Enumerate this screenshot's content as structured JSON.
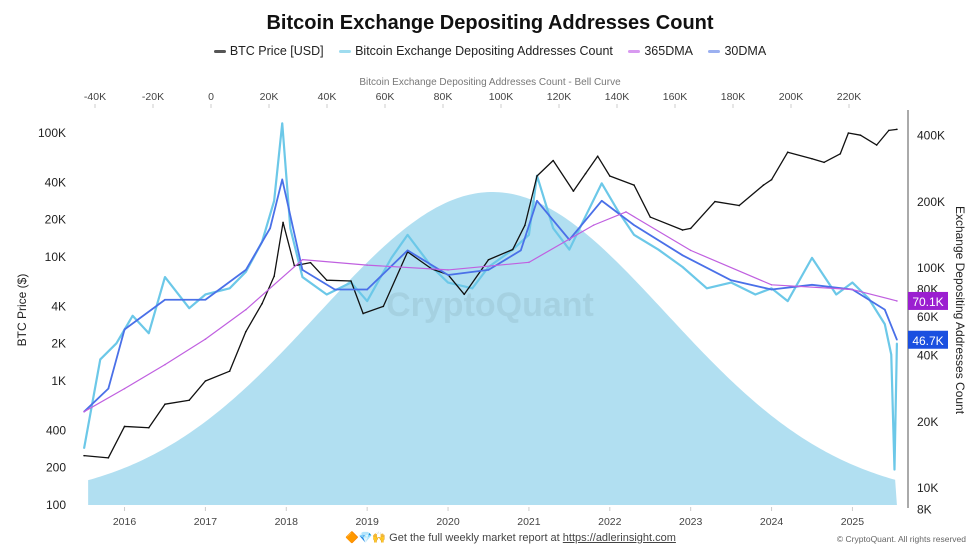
{
  "chart_data": {
    "type": "line",
    "title": "Bitcoin Exchange Depositing Addresses Count",
    "legend": [
      {
        "name": "BTC Price [USD]",
        "color": "#111111"
      },
      {
        "name": "Bitcoin Exchange Depositing Addresses Count",
        "color": "#7fd0ea"
      },
      {
        "name": "365DMA",
        "color": "#c060e0"
      },
      {
        "name": "30DMA",
        "color": "#4a70e8"
      }
    ],
    "legend_position": "top",
    "top_axis": {
      "label": "Bitcoin Exchange Depositing Addresses Count - Bell Curve",
      "ticks": [
        "-40K",
        "-20K",
        "0",
        "20K",
        "40K",
        "60K",
        "80K",
        "100K",
        "120K",
        "140K",
        "160K",
        "180K",
        "200K",
        "220K"
      ],
      "range": [
        -45000,
        240000
      ]
    },
    "bell_curve": {
      "center": 97000,
      "sigma": 60000,
      "color": "#a8dcef"
    },
    "left_axis": {
      "label": "BTC Price ($)",
      "scale": "log",
      "range": [
        100,
        130000
      ],
      "ticks": [
        "100",
        "200",
        "400",
        "1K",
        "2K",
        "4K",
        "10K",
        "20K",
        "40K",
        "100K"
      ]
    },
    "right_axis": {
      "label": "Exchange Depositing Addresses Count",
      "scale": "log",
      "range": [
        8000,
        450000
      ],
      "ticks": [
        "8K",
        "10K",
        "20K",
        "40K",
        "60K",
        "80K",
        "100K",
        "200K",
        "400K"
      ]
    },
    "x_axis": {
      "range": [
        2015.4,
        2025.65
      ],
      "ticks": [
        "2016",
        "2017",
        "2018",
        "2019",
        "2020",
        "2021",
        "2022",
        "2023",
        "2024",
        "2025"
      ]
    },
    "series": [
      {
        "name": "BTC Price [USD]",
        "axis": "left",
        "x": [
          2015.5,
          2015.8,
          2016.0,
          2016.3,
          2016.5,
          2016.8,
          2017.0,
          2017.3,
          2017.5,
          2017.7,
          2017.85,
          2017.96,
          2018.1,
          2018.3,
          2018.5,
          2018.8,
          2018.95,
          2019.2,
          2019.5,
          2019.8,
          2020.0,
          2020.2,
          2020.5,
          2020.8,
          2020.95,
          2021.1,
          2021.3,
          2021.55,
          2021.7,
          2021.85,
          2022.0,
          2022.3,
          2022.5,
          2022.9,
          2023.0,
          2023.3,
          2023.6,
          2023.9,
          2024.0,
          2024.2,
          2024.5,
          2024.65,
          2024.85,
          2024.95,
          2025.1,
          2025.3,
          2025.45,
          2025.55
        ],
        "values": [
          250,
          240,
          430,
          420,
          650,
          700,
          1000,
          1200,
          2500,
          4200,
          7000,
          19000,
          8500,
          9000,
          6500,
          6400,
          3500,
          4000,
          11000,
          8000,
          7200,
          5000,
          9500,
          11500,
          18000,
          45000,
          60000,
          34000,
          47000,
          65000,
          45000,
          38000,
          21000,
          16500,
          17000,
          28000,
          26000,
          38000,
          42000,
          70000,
          62000,
          58000,
          68000,
          100000,
          96000,
          80000,
          105000,
          107000
        ]
      },
      {
        "name": "Bitcoin Exchange Depositing Addresses Count",
        "axis": "right",
        "x": [
          2015.5,
          2015.7,
          2015.9,
          2016.1,
          2016.3,
          2016.5,
          2016.8,
          2017.0,
          2017.3,
          2017.5,
          2017.7,
          2017.85,
          2017.95,
          2018.05,
          2018.2,
          2018.5,
          2018.8,
          2019.0,
          2019.3,
          2019.5,
          2019.8,
          2020.0,
          2020.3,
          2020.5,
          2020.8,
          2021.0,
          2021.1,
          2021.3,
          2021.5,
          2021.7,
          2021.9,
          2022.1,
          2022.3,
          2022.6,
          2022.9,
          2023.2,
          2023.5,
          2023.8,
          2024.0,
          2024.2,
          2024.5,
          2024.8,
          2025.0,
          2025.2,
          2025.4,
          2025.48,
          2025.52,
          2025.55
        ],
        "values": [
          15000,
          38000,
          45000,
          60000,
          50000,
          90000,
          65000,
          75000,
          80000,
          95000,
          130000,
          200000,
          450000,
          150000,
          90000,
          75000,
          85000,
          70000,
          110000,
          140000,
          100000,
          85000,
          80000,
          100000,
          120000,
          140000,
          260000,
          150000,
          120000,
          170000,
          240000,
          180000,
          140000,
          120000,
          100000,
          80000,
          85000,
          75000,
          80000,
          70000,
          110000,
          75000,
          85000,
          72000,
          55000,
          40000,
          12000,
          45000
        ]
      },
      {
        "name": "30DMA",
        "axis": "right",
        "x": [
          2015.5,
          2015.8,
          2016.0,
          2016.5,
          2017.0,
          2017.5,
          2017.8,
          2017.95,
          2018.2,
          2018.6,
          2019.0,
          2019.5,
          2020.0,
          2020.5,
          2020.9,
          2021.1,
          2021.5,
          2021.9,
          2022.3,
          2022.9,
          2023.5,
          2024.0,
          2024.5,
          2025.0,
          2025.4,
          2025.55
        ],
        "values": [
          22000,
          28000,
          52000,
          71000,
          71000,
          97000,
          150000,
          250000,
          97000,
          79000,
          79000,
          119000,
          92000,
          97000,
          119000,
          200000,
          133000,
          200000,
          155000,
          113000,
          87000,
          79000,
          83000,
          79000,
          64000,
          46700
        ]
      },
      {
        "name": "365DMA",
        "axis": "right",
        "x": [
          2015.5,
          2016.0,
          2016.5,
          2017.0,
          2017.5,
          2018.2,
          2019.0,
          2020.0,
          2021.0,
          2021.8,
          2022.2,
          2023.0,
          2024.0,
          2025.0,
          2025.55
        ],
        "values": [
          22000,
          28000,
          36000,
          47000,
          64000,
          108000,
          102000,
          97000,
          105000,
          155000,
          178000,
          119000,
          83000,
          79000,
          70100
        ]
      }
    ],
    "last_value_labels": [
      {
        "text": "70.1K",
        "series": "365DMA",
        "color": "#9b1fd0"
      },
      {
        "text": "46.7K",
        "series": "30DMA",
        "color": "#1a4fe0"
      }
    ],
    "watermark": "CryptoQuant",
    "grid": false
  },
  "footer": {
    "emoji": "🔶💎🙌",
    "text": "Get the full weekly market report at ",
    "link": "https://adlerinsight.com",
    "copyright": "© CryptoQuant. All rights reserved"
  }
}
